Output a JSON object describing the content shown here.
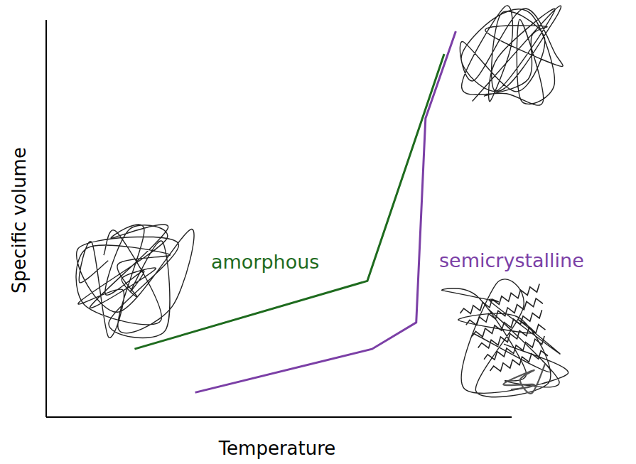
{
  "chart_data": {
    "type": "line",
    "x_label": "Temperature",
    "y_label": "Specific volume",
    "xlim": [
      0,
      100
    ],
    "ylim": [
      0,
      105
    ],
    "tick_labels": false,
    "series": [
      {
        "name": "amorphous",
        "color": "#1e6b1e",
        "x": [
          19,
          69,
          85.5
        ],
        "values": [
          18,
          36,
          96
        ]
      },
      {
        "name": "semicrystalline",
        "color": "#7b3fa6",
        "x": [
          32,
          70,
          79.5,
          81.5,
          88
        ],
        "values": [
          6.5,
          18,
          25,
          79,
          102
        ]
      }
    ]
  }
}
